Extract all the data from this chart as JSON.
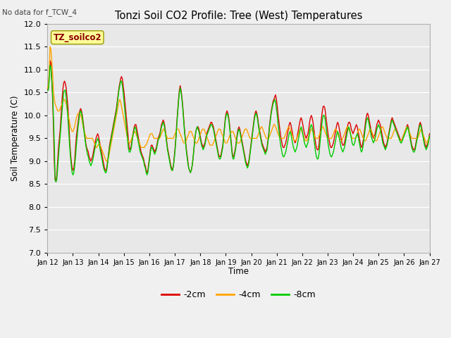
{
  "title": "Tonzi Soil CO2 Profile: Tree (West) Temperatures",
  "note": "No data for f_TCW_4",
  "ylabel": "Soil Temperature (C)",
  "xlabel": "Time",
  "box_label": "TZ_soilco2",
  "ylim": [
    7.0,
    12.0
  ],
  "yticks": [
    7.0,
    7.5,
    8.0,
    8.5,
    9.0,
    9.5,
    10.0,
    10.5,
    11.0,
    11.5,
    12.0
  ],
  "bg_color": "#e8e8e8",
  "fig_bg": "#f0f0f0",
  "colors": {
    "m2": "#dd0000",
    "m4": "#ffa500",
    "m8": "#00cc00"
  },
  "x_tick_labels": [
    "Jan 12",
    "Jan 13",
    "Jan 14",
    "Jan 15",
    "Jan 16",
    "Jan 17",
    "Jan 18",
    "Jan 19",
    "Jan 20",
    "Jan 21",
    "Jan 22",
    "Jan 23",
    "Jan 24",
    "Jan 25",
    "Jan 26",
    "Jan 27"
  ],
  "m2_key": [
    10.55,
    10.6,
    10.9,
    11.2,
    11.15,
    10.8,
    10.4,
    9.8,
    9.0,
    8.6,
    8.55,
    8.7,
    9.0,
    9.3,
    9.5,
    9.7,
    10.0,
    10.3,
    10.55,
    10.7,
    10.75,
    10.7,
    10.6,
    10.4,
    10.2,
    9.9,
    9.5,
    9.2,
    9.0,
    8.85,
    8.8,
    8.85,
    9.0,
    9.3,
    9.55,
    9.7,
    9.85,
    10.0,
    10.1,
    10.15,
    10.1,
    10.0,
    9.85,
    9.7,
    9.55,
    9.4,
    9.3,
    9.25,
    9.2,
    9.1,
    9.05,
    9.0,
    9.05,
    9.1,
    9.2,
    9.3,
    9.4,
    9.5,
    9.55,
    9.6,
    9.55,
    9.45,
    9.35,
    9.25,
    9.15,
    9.05,
    8.95,
    8.85,
    8.8,
    8.8,
    8.9,
    9.05,
    9.2,
    9.35,
    9.45,
    9.55,
    9.65,
    9.75,
    9.85,
    9.95,
    10.05,
    10.15,
    10.3,
    10.45,
    10.6,
    10.7,
    10.8,
    10.85,
    10.8,
    10.65,
    10.5,
    10.3,
    10.1,
    9.9,
    9.7,
    9.5,
    9.3,
    9.25,
    9.3,
    9.4,
    9.55,
    9.65,
    9.75,
    9.8,
    9.8,
    9.7,
    9.6,
    9.5,
    9.4,
    9.3,
    9.2,
    9.15,
    9.1,
    9.05,
    8.95,
    8.9,
    8.8,
    8.75,
    8.8,
    8.95,
    9.1,
    9.25,
    9.35,
    9.35,
    9.3,
    9.25,
    9.2,
    9.25,
    9.3,
    9.4,
    9.5,
    9.55,
    9.6,
    9.7,
    9.8,
    9.85,
    9.9,
    9.85,
    9.75,
    9.6,
    9.45,
    9.3,
    9.2,
    9.1,
    9.0,
    8.9,
    8.85,
    8.8,
    8.9,
    9.1,
    9.3,
    9.55,
    9.85,
    10.1,
    10.35,
    10.55,
    10.65,
    10.55,
    10.4,
    10.2,
    9.95,
    9.7,
    9.5,
    9.3,
    9.15,
    9.0,
    8.85,
    8.8,
    8.75,
    8.8,
    8.9,
    9.05,
    9.25,
    9.45,
    9.6,
    9.7,
    9.75,
    9.75,
    9.7,
    9.6,
    9.5,
    9.4,
    9.35,
    9.3,
    9.35,
    9.4,
    9.5,
    9.6,
    9.65,
    9.7,
    9.75,
    9.8,
    9.85,
    9.85,
    9.8,
    9.75,
    9.65,
    9.55,
    9.45,
    9.35,
    9.25,
    9.15,
    9.1,
    9.1,
    9.15,
    9.25,
    9.35,
    9.55,
    9.75,
    9.95,
    10.05,
    10.1,
    10.05,
    9.95,
    9.8,
    9.6,
    9.4,
    9.2,
    9.1,
    9.1,
    9.2,
    9.3,
    9.45,
    9.6,
    9.7,
    9.75,
    9.7,
    9.6,
    9.5,
    9.4,
    9.3,
    9.2,
    9.1,
    9.0,
    8.95,
    8.9,
    8.95,
    9.05,
    9.2,
    9.35,
    9.5,
    9.65,
    9.8,
    9.95,
    10.05,
    10.1,
    10.05,
    9.95,
    9.8,
    9.7,
    9.6,
    9.5,
    9.4,
    9.35,
    9.3,
    9.25,
    9.2,
    9.25,
    9.3,
    9.45,
    9.6,
    9.8,
    9.95,
    10.1,
    10.2,
    10.3,
    10.35,
    10.4,
    10.45,
    10.35,
    10.2,
    10.0,
    9.85,
    9.7,
    9.55,
    9.45,
    9.35,
    9.3,
    9.3,
    9.35,
    9.4,
    9.5,
    9.6,
    9.7,
    9.8,
    9.85,
    9.8,
    9.7,
    9.6,
    9.5,
    9.45,
    9.4,
    9.45,
    9.5,
    9.6,
    9.7,
    9.8,
    9.9,
    9.95,
    9.9,
    9.8,
    9.7,
    9.6,
    9.55,
    9.5,
    9.55,
    9.6,
    9.7,
    9.85,
    9.95,
    10.0,
    9.95,
    9.85,
    9.7,
    9.55,
    9.4,
    9.3,
    9.25,
    9.25,
    9.35,
    9.55,
    9.75,
    9.95,
    10.1,
    10.2,
    10.2,
    10.15,
    10.0,
    9.85,
    9.7,
    9.55,
    9.45,
    9.35,
    9.3,
    9.3,
    9.35,
    9.4,
    9.5,
    9.6,
    9.7,
    9.8,
    9.85,
    9.8,
    9.7,
    9.6,
    9.5,
    9.4,
    9.35,
    9.35,
    9.4,
    9.5,
    9.6,
    9.7,
    9.8,
    9.85,
    9.85,
    9.8,
    9.7,
    9.65,
    9.6,
    9.65,
    9.7,
    9.75,
    9.8,
    9.75,
    9.65,
    9.55,
    9.45,
    9.35,
    9.3,
    9.35,
    9.45,
    9.6,
    9.75,
    9.9,
    10.0,
    10.05,
    10.0,
    9.9,
    9.8,
    9.7,
    9.6,
    9.55,
    9.5,
    9.55,
    9.6,
    9.7,
    9.8,
    9.85,
    9.9,
    9.85,
    9.8,
    9.7,
    9.6,
    9.5,
    9.4,
    9.35,
    9.3,
    9.35,
    9.4,
    9.5,
    9.6,
    9.7,
    9.8,
    9.9,
    9.95,
    9.9,
    9.85,
    9.8,
    9.75,
    9.7,
    9.65,
    9.6,
    9.55,
    9.5,
    9.45,
    9.45,
    9.5,
    9.55,
    9.6,
    9.65,
    9.7,
    9.75,
    9.8,
    9.75,
    9.65,
    9.55,
    9.45,
    9.35,
    9.3,
    9.25,
    9.25,
    9.3,
    9.4,
    9.5,
    9.6,
    9.7,
    9.8,
    9.85,
    9.8,
    9.7,
    9.6,
    9.5,
    9.4,
    9.35,
    9.3,
    9.35,
    9.4,
    9.5,
    9.6
  ],
  "m4_key": [
    10.6,
    10.65,
    10.85,
    11.5,
    11.45,
    11.2,
    10.95,
    10.55,
    10.35,
    10.25,
    10.2,
    10.15,
    10.1,
    10.1,
    10.1,
    10.15,
    10.2,
    10.25,
    10.3,
    10.35,
    10.35,
    10.3,
    10.25,
    10.15,
    10.05,
    9.95,
    9.85,
    9.75,
    9.7,
    9.65,
    9.65,
    9.7,
    9.75,
    9.85,
    9.95,
    10.0,
    10.05,
    10.05,
    10.05,
    10.0,
    9.95,
    9.85,
    9.75,
    9.65,
    9.6,
    9.55,
    9.5,
    9.5,
    9.5,
    9.5,
    9.5,
    9.5,
    9.5,
    9.5,
    9.45,
    9.4,
    9.35,
    9.3,
    9.3,
    9.35,
    9.35,
    9.4,
    9.35,
    9.3,
    9.25,
    9.2,
    9.15,
    9.1,
    9.05,
    9.0,
    9.0,
    9.05,
    9.1,
    9.2,
    9.3,
    9.4,
    9.5,
    9.6,
    9.7,
    9.8,
    9.9,
    10.0,
    10.1,
    10.2,
    10.3,
    10.35,
    10.3,
    10.2,
    10.1,
    10.0,
    9.9,
    9.8,
    9.7,
    9.6,
    9.5,
    9.45,
    9.4,
    9.4,
    9.45,
    9.5,
    9.55,
    9.6,
    9.65,
    9.65,
    9.6,
    9.55,
    9.5,
    9.45,
    9.4,
    9.35,
    9.3,
    9.3,
    9.3,
    9.3,
    9.3,
    9.35,
    9.35,
    9.4,
    9.45,
    9.5,
    9.55,
    9.6,
    9.6,
    9.6,
    9.55,
    9.5,
    9.5,
    9.5,
    9.5,
    9.5,
    9.5,
    9.5,
    9.5,
    9.55,
    9.6,
    9.65,
    9.7,
    9.7,
    9.65,
    9.6,
    9.55,
    9.5,
    9.5,
    9.5,
    9.5,
    9.5,
    9.5,
    9.5,
    9.5,
    9.55,
    9.6,
    9.65,
    9.7,
    9.7,
    9.7,
    9.65,
    9.6,
    9.55,
    9.5,
    9.45,
    9.4,
    9.4,
    9.4,
    9.45,
    9.5,
    9.55,
    9.6,
    9.65,
    9.65,
    9.65,
    9.6,
    9.55,
    9.5,
    9.45,
    9.4,
    9.4,
    9.4,
    9.45,
    9.5,
    9.55,
    9.6,
    9.65,
    9.7,
    9.7,
    9.7,
    9.65,
    9.6,
    9.55,
    9.5,
    9.45,
    9.4,
    9.35,
    9.35,
    9.35,
    9.35,
    9.4,
    9.45,
    9.5,
    9.55,
    9.6,
    9.65,
    9.7,
    9.7,
    9.7,
    9.65,
    9.6,
    9.55,
    9.5,
    9.45,
    9.4,
    9.4,
    9.4,
    9.45,
    9.5,
    9.55,
    9.6,
    9.65,
    9.65,
    9.65,
    9.6,
    9.55,
    9.5,
    9.45,
    9.4,
    9.4,
    9.4,
    9.4,
    9.45,
    9.5,
    9.55,
    9.6,
    9.65,
    9.7,
    9.7,
    9.7,
    9.65,
    9.6,
    9.55,
    9.5,
    9.5,
    9.5,
    9.5,
    9.5,
    9.5,
    9.5,
    9.5,
    9.5,
    9.55,
    9.6,
    9.65,
    9.7,
    9.75,
    9.75,
    9.7,
    9.65,
    9.6,
    9.55,
    9.5,
    9.5,
    9.5,
    9.5,
    9.55,
    9.6,
    9.65,
    9.7,
    9.75,
    9.8,
    9.8,
    9.75,
    9.7,
    9.65,
    9.6,
    9.55,
    9.5,
    9.5,
    9.5,
    9.5,
    9.5,
    9.5,
    9.55,
    9.6,
    9.65,
    9.7,
    9.75,
    9.75,
    9.7,
    9.65,
    9.6,
    9.55,
    9.5,
    9.45,
    9.45,
    9.45,
    9.5,
    9.55,
    9.6,
    9.65,
    9.7,
    9.7,
    9.65,
    9.6,
    9.55,
    9.5,
    9.45,
    9.45,
    9.45,
    9.5,
    9.55,
    9.6,
    9.65,
    9.7,
    9.7,
    9.65,
    9.6,
    9.55,
    9.5,
    9.5,
    9.5,
    9.5,
    9.55,
    9.6,
    9.65,
    9.7,
    9.75,
    9.75,
    9.7,
    9.65,
    9.6,
    9.55,
    9.5,
    9.5,
    9.5,
    9.5,
    9.5,
    9.5,
    9.55,
    9.6,
    9.65,
    9.7,
    9.7,
    9.65,
    9.6,
    9.55,
    9.5,
    9.45,
    9.45,
    9.45,
    9.5,
    9.55,
    9.6,
    9.65,
    9.7,
    9.75,
    9.75,
    9.7,
    9.65,
    9.6,
    9.55,
    9.5,
    9.5,
    9.5,
    9.5,
    9.5,
    9.55,
    9.6,
    9.65,
    9.7,
    9.7,
    9.65,
    9.6,
    9.55,
    9.5,
    9.45,
    9.45,
    9.45,
    9.5,
    9.55,
    9.6,
    9.65,
    9.7,
    9.7,
    9.65,
    9.6,
    9.55,
    9.5,
    9.45,
    9.45,
    9.45,
    9.5,
    9.55,
    9.6,
    9.65,
    9.7,
    9.75,
    9.75,
    9.7,
    9.65,
    9.6,
    9.55,
    9.5,
    9.5,
    9.5,
    9.5,
    9.5,
    9.5,
    9.55,
    9.6,
    9.65,
    9.7,
    9.7,
    9.65,
    9.6,
    9.55,
    9.5,
    9.45,
    9.45,
    9.45,
    9.5,
    9.55,
    9.6,
    9.65,
    9.7,
    9.75,
    9.75,
    9.7,
    9.65,
    9.6,
    9.55,
    9.5,
    9.5,
    9.5,
    9.5,
    9.5,
    9.5,
    9.5,
    9.5,
    9.55,
    9.6,
    9.65,
    9.7,
    9.65,
    9.6,
    9.55,
    9.5,
    9.45,
    9.4,
    9.4,
    9.45,
    9.5,
    9.55
  ],
  "m8_key": [
    10.55,
    10.55,
    10.75,
    11.1,
    11.05,
    10.8,
    10.5,
    10.0,
    9.4,
    8.6,
    8.55,
    8.6,
    8.85,
    9.1,
    9.35,
    9.55,
    9.8,
    10.05,
    10.3,
    10.5,
    10.55,
    10.55,
    10.4,
    10.2,
    9.95,
    9.65,
    9.35,
    9.1,
    8.9,
    8.75,
    8.7,
    8.75,
    8.9,
    9.1,
    9.35,
    9.55,
    9.75,
    9.9,
    10.05,
    10.1,
    10.05,
    9.95,
    9.8,
    9.65,
    9.5,
    9.35,
    9.25,
    9.15,
    9.1,
    9.0,
    8.95,
    8.9,
    8.95,
    9.0,
    9.1,
    9.2,
    9.3,
    9.4,
    9.45,
    9.5,
    9.45,
    9.35,
    9.25,
    9.15,
    9.05,
    8.95,
    8.85,
    8.8,
    8.75,
    8.75,
    8.85,
    9.0,
    9.15,
    9.3,
    9.4,
    9.5,
    9.6,
    9.7,
    9.8,
    9.9,
    10.0,
    10.1,
    10.25,
    10.4,
    10.55,
    10.65,
    10.75,
    10.75,
    10.65,
    10.5,
    10.3,
    10.1,
    9.9,
    9.7,
    9.5,
    9.3,
    9.2,
    9.2,
    9.25,
    9.35,
    9.5,
    9.6,
    9.7,
    9.75,
    9.7,
    9.6,
    9.5,
    9.4,
    9.3,
    9.2,
    9.15,
    9.1,
    9.05,
    9.0,
    8.9,
    8.85,
    8.75,
    8.7,
    8.75,
    8.9,
    9.05,
    9.2,
    9.3,
    9.3,
    9.25,
    9.2,
    9.15,
    9.2,
    9.25,
    9.35,
    9.45,
    9.5,
    9.55,
    9.65,
    9.75,
    9.8,
    9.85,
    9.8,
    9.7,
    9.55,
    9.4,
    9.25,
    9.15,
    9.05,
    8.95,
    8.85,
    8.8,
    8.8,
    8.9,
    9.05,
    9.25,
    9.5,
    9.8,
    10.05,
    10.3,
    10.5,
    10.6,
    10.5,
    10.35,
    10.15,
    9.9,
    9.65,
    9.45,
    9.25,
    9.1,
    8.95,
    8.85,
    8.8,
    8.75,
    8.8,
    8.9,
    9.05,
    9.25,
    9.45,
    9.6,
    9.7,
    9.75,
    9.7,
    9.65,
    9.55,
    9.45,
    9.35,
    9.3,
    9.25,
    9.3,
    9.35,
    9.45,
    9.55,
    9.6,
    9.65,
    9.7,
    9.75,
    9.8,
    9.8,
    9.75,
    9.7,
    9.6,
    9.5,
    9.4,
    9.3,
    9.2,
    9.1,
    9.05,
    9.05,
    9.1,
    9.2,
    9.3,
    9.5,
    9.7,
    9.9,
    10.0,
    10.05,
    10.0,
    9.9,
    9.75,
    9.55,
    9.35,
    9.15,
    9.05,
    9.05,
    9.15,
    9.25,
    9.4,
    9.55,
    9.65,
    9.7,
    9.65,
    9.55,
    9.45,
    9.35,
    9.25,
    9.15,
    9.05,
    8.95,
    8.9,
    8.85,
    8.9,
    9.0,
    9.15,
    9.3,
    9.45,
    9.6,
    9.75,
    9.9,
    10.0,
    10.05,
    10.0,
    9.9,
    9.75,
    9.65,
    9.55,
    9.45,
    9.35,
    9.3,
    9.25,
    9.2,
    9.15,
    9.2,
    9.25,
    9.4,
    9.55,
    9.75,
    9.9,
    10.05,
    10.15,
    10.25,
    10.3,
    10.35,
    10.3,
    10.15,
    10.0,
    9.8,
    9.65,
    9.5,
    9.35,
    9.25,
    9.15,
    9.1,
    9.1,
    9.15,
    9.2,
    9.3,
    9.4,
    9.5,
    9.6,
    9.65,
    9.6,
    9.5,
    9.4,
    9.3,
    9.25,
    9.2,
    9.25,
    9.3,
    9.4,
    9.5,
    9.6,
    9.7,
    9.75,
    9.7,
    9.6,
    9.5,
    9.4,
    9.35,
    9.3,
    9.35,
    9.4,
    9.5,
    9.65,
    9.75,
    9.8,
    9.75,
    9.65,
    9.5,
    9.35,
    9.2,
    9.1,
    9.05,
    9.05,
    9.15,
    9.35,
    9.55,
    9.75,
    9.9,
    10.0,
    10.0,
    9.95,
    9.8,
    9.65,
    9.5,
    9.35,
    9.25,
    9.15,
    9.1,
    9.1,
    9.15,
    9.2,
    9.3,
    9.4,
    9.5,
    9.6,
    9.65,
    9.6,
    9.5,
    9.4,
    9.3,
    9.25,
    9.2,
    9.25,
    9.3,
    9.4,
    9.5,
    9.6,
    9.7,
    9.75,
    9.7,
    9.6,
    9.5,
    9.4,
    9.35,
    9.35,
    9.4,
    9.5,
    9.55,
    9.6,
    9.55,
    9.45,
    9.35,
    9.25,
    9.2,
    9.25,
    9.35,
    9.5,
    9.65,
    9.8,
    9.9,
    9.95,
    9.9,
    9.8,
    9.7,
    9.6,
    9.5,
    9.45,
    9.4,
    9.45,
    9.5,
    9.6,
    9.7,
    9.75,
    9.8,
    9.75,
    9.7,
    9.6,
    9.5,
    9.4,
    9.35,
    9.3,
    9.25,
    9.3,
    9.35,
    9.45,
    9.55,
    9.65,
    9.75,
    9.85,
    9.9,
    9.85,
    9.8,
    9.75,
    9.7,
    9.65,
    9.6,
    9.55,
    9.5,
    9.45,
    9.4,
    9.4,
    9.45,
    9.5,
    9.55,
    9.6,
    9.65,
    9.7,
    9.75,
    9.7,
    9.6,
    9.5,
    9.4,
    9.3,
    9.25,
    9.2,
    9.2,
    9.25,
    9.35,
    9.45,
    9.55,
    9.65,
    9.75,
    9.8,
    9.75,
    9.65,
    9.55,
    9.45,
    9.35,
    9.3,
    9.25,
    9.3,
    9.35,
    9.45,
    9.55
  ]
}
